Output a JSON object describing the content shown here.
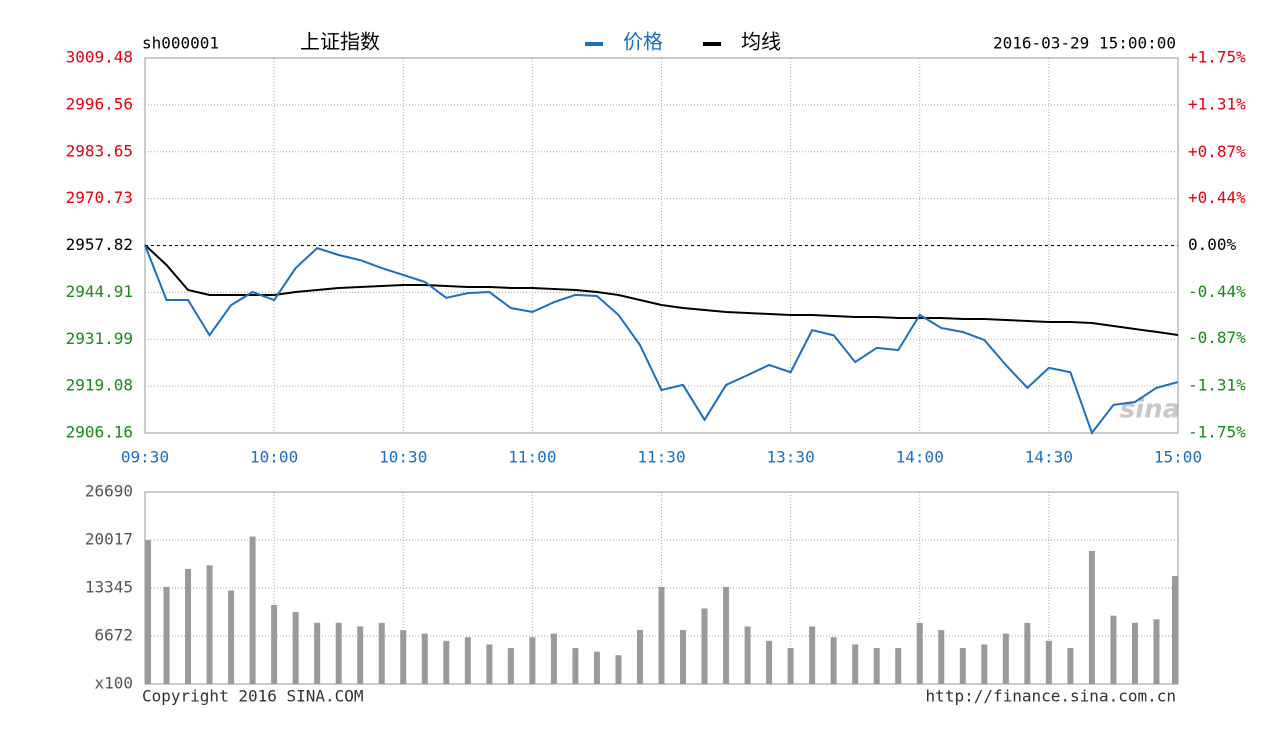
{
  "chart_data": [
    {
      "type": "line",
      "code": "sh000001",
      "title": "上证指数",
      "timestamp": "2016-03-29 15:00:00",
      "watermark": "sina",
      "categories": [
        "09:30",
        null,
        null,
        null,
        null,
        null,
        "10:00",
        null,
        null,
        null,
        null,
        null,
        "10:30",
        null,
        null,
        null,
        null,
        null,
        "11:00",
        null,
        null,
        null,
        null,
        null,
        "11:30",
        null,
        null,
        null,
        null,
        null,
        "13:30",
        null,
        null,
        null,
        null,
        null,
        "14:00",
        null,
        null,
        null,
        null,
        null,
        "14:30",
        null,
        null,
        null,
        null,
        null,
        "15:00"
      ],
      "series": [
        {
          "name": "价格",
          "color": "#1a6fc0",
          "values": [
            2957.9,
            2942.8,
            2942.8,
            2933.1,
            2941.4,
            2945.0,
            2942.8,
            2951.6,
            2957.1,
            2955.2,
            2953.8,
            2951.6,
            2949.7,
            2947.8,
            2943.4,
            2944.7,
            2945.0,
            2940.6,
            2939.5,
            2942.2,
            2944.2,
            2943.9,
            2938.7,
            2930.4,
            2918.0,
            2919.4,
            2909.8,
            2919.4,
            2922.1,
            2924.9,
            2922.9,
            2934.5,
            2933.1,
            2925.7,
            2929.6,
            2929.0,
            2938.7,
            2935.1,
            2934.0,
            2931.8,
            2924.9,
            2918.6,
            2924.1,
            2922.9,
            2906.2,
            2913.9,
            2914.7,
            2918.6,
            2920.2
          ]
        },
        {
          "name": "均线",
          "color": "#000000",
          "values": [
            2957.96,
            2952.45,
            2945.56,
            2944.18,
            2944.18,
            2944.18,
            2944.18,
            2945.01,
            2945.56,
            2946.11,
            2946.39,
            2946.66,
            2946.94,
            2946.94,
            2946.66,
            2946.39,
            2946.39,
            2946.11,
            2946.11,
            2945.83,
            2945.56,
            2945.01,
            2944.18,
            2942.8,
            2941.43,
            2940.6,
            2940.05,
            2939.5,
            2939.22,
            2938.95,
            2938.67,
            2938.67,
            2938.4,
            2938.12,
            2938.12,
            2937.85,
            2937.85,
            2937.85,
            2937.57,
            2937.57,
            2937.29,
            2937.02,
            2936.74,
            2936.74,
            2936.47,
            2935.64,
            2934.81,
            2934.03,
            2933.16
          ]
        }
      ],
      "ylim": [
        2906.16,
        3009.48
      ],
      "yticks": [
        2906.16,
        2919.08,
        2931.99,
        2944.91,
        2957.82,
        2970.73,
        2983.65,
        2996.56,
        3009.48
      ],
      "y2lim": [
        -1.75,
        1.75
      ],
      "y2ticks": [
        {
          "value": -1.75,
          "label": "-1.75%"
        },
        {
          "value": -1.31,
          "label": "-1.31%"
        },
        {
          "value": -0.87,
          "label": "-0.87%"
        },
        {
          "value": -0.44,
          "label": "-0.44%"
        },
        {
          "value": 0,
          "label": "0.00%"
        },
        {
          "value": 0.44,
          "label": "+0.44%"
        },
        {
          "value": 0.87,
          "label": "+0.87%"
        },
        {
          "value": 1.31,
          "label": "+1.31%"
        },
        {
          "value": 1.75,
          "label": "+1.75%"
        }
      ],
      "reference_line": 2957.82,
      "grid": true
    },
    {
      "type": "bar",
      "copyright": "Copyright 2016 SINA.COM",
      "source_url": "http://finance.sina.com.cn",
      "categories": [
        "09:30",
        null,
        null,
        null,
        null,
        null,
        "10:00",
        null,
        null,
        null,
        null,
        null,
        "10:30",
        null,
        null,
        null,
        null,
        null,
        "11:00",
        null,
        null,
        null,
        null,
        null,
        "11:30",
        null,
        null,
        null,
        null,
        null,
        "13:30",
        null,
        null,
        null,
        null,
        null,
        "14:00",
        null,
        null,
        null,
        null,
        null,
        "14:30",
        null,
        null,
        null,
        null,
        null,
        "15:00"
      ],
      "values": [
        20000,
        13500,
        16000,
        16500,
        13000,
        20500,
        11000,
        10000,
        8500,
        8500,
        8000,
        8500,
        7500,
        7000,
        6000,
        6500,
        5500,
        5000,
        6500,
        7000,
        5000,
        4500,
        4000,
        7500,
        13500,
        7500,
        10500,
        13500,
        8000,
        6000,
        5000,
        8000,
        6500,
        5500,
        5000,
        5000,
        8500,
        7500,
        5000,
        5500,
        7000,
        8500,
        6000,
        5000,
        18500,
        9500,
        8500,
        9000,
        15000
      ],
      "color": "#9a9a9a",
      "ylim": [
        0,
        26690
      ],
      "yticks": [
        {
          "value": 0,
          "label": "x100"
        },
        6672,
        13345,
        20017,
        26690
      ],
      "grid": true
    }
  ]
}
